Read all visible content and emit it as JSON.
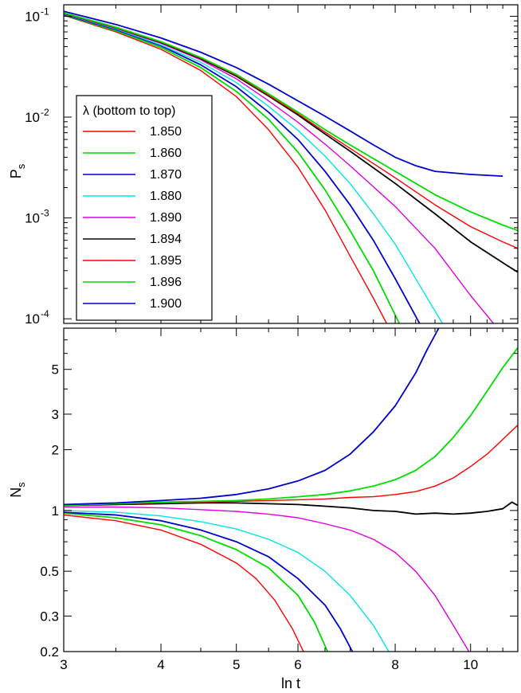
{
  "chart_data": [
    {
      "panel": "top",
      "type": "line",
      "title": "",
      "xlabel": "",
      "ylabel": "P_s",
      "ylabel_main": "P",
      "ylabel_sub": "s",
      "xscale": "log",
      "yscale": "log",
      "xlim": [
        3,
        11.5
      ],
      "ylim": [
        9e-05,
        0.13
      ],
      "xticks": [
        3,
        4,
        5,
        6,
        8,
        10
      ],
      "xtick_labels": [
        "3",
        "4",
        "5",
        "6",
        "8",
        "10"
      ],
      "yticks": [
        0.1,
        0.01,
        0.001,
        0.0001
      ],
      "ytick_labels": [
        {
          "base": "10",
          "exp": "-1"
        },
        {
          "base": "10",
          "exp": "-2"
        },
        {
          "base": "10",
          "exp": "-3"
        },
        {
          "base": "10",
          "exp": "-4"
        }
      ],
      "legend": {
        "title": "λ (bottom to top)",
        "placement": "upper-left",
        "entries": [
          "1.850",
          "1.860",
          "1.870",
          "1.880",
          "1.890",
          "1.894",
          "1.895",
          "1.896",
          "1.900"
        ]
      },
      "series": [
        {
          "name": "1.850",
          "color": "#ff0000",
          "x": [
            3,
            3.5,
            4,
            4.5,
            5,
            5.5,
            6,
            6.5,
            7,
            7.5,
            7.8
          ],
          "y": [
            0.102,
            0.07,
            0.047,
            0.029,
            0.016,
            0.0075,
            0.0032,
            0.0012,
            0.00042,
            0.00016,
            9e-05
          ]
        },
        {
          "name": "1.860",
          "color": "#00dd00",
          "x": [
            3,
            3.5,
            4,
            4.5,
            5,
            5.5,
            6,
            6.5,
            7,
            7.5,
            8.1
          ],
          "y": [
            0.103,
            0.072,
            0.049,
            0.031,
            0.018,
            0.0095,
            0.0045,
            0.0019,
            0.00075,
            0.0003,
            9e-05
          ]
        },
        {
          "name": "1.870",
          "color": "#0000cc",
          "x": [
            3,
            3.5,
            4,
            4.5,
            5,
            5.5,
            6,
            6.5,
            7,
            7.5,
            8,
            8.6
          ],
          "y": [
            0.104,
            0.074,
            0.051,
            0.033,
            0.02,
            0.0112,
            0.006,
            0.0029,
            0.00135,
            0.0006,
            0.00025,
            9e-05
          ]
        },
        {
          "name": "1.880",
          "color": "#00e5e5",
          "x": [
            3,
            3.5,
            4,
            4.5,
            5,
            5.5,
            6,
            6.5,
            7,
            7.5,
            8,
            8.5,
            9.2
          ],
          "y": [
            0.105,
            0.075,
            0.052,
            0.035,
            0.022,
            0.0128,
            0.0074,
            0.0041,
            0.0022,
            0.0011,
            0.00055,
            0.00025,
            9e-05
          ]
        },
        {
          "name": "1.890",
          "color": "#e000e0",
          "x": [
            3,
            3.5,
            4,
            4.5,
            5,
            5.5,
            6,
            6.5,
            7,
            8,
            9,
            10,
            10.7
          ],
          "y": [
            0.106,
            0.076,
            0.054,
            0.037,
            0.024,
            0.0145,
            0.0089,
            0.0054,
            0.0033,
            0.0013,
            0.0005,
            0.00017,
            9e-05
          ]
        },
        {
          "name": "1.894",
          "color": "#000000",
          "x": [
            3,
            3.5,
            4,
            4.5,
            5,
            5.5,
            6,
            6.5,
            7,
            8,
            9,
            10,
            11,
            11.5
          ],
          "y": [
            0.107,
            0.077,
            0.055,
            0.038,
            0.0255,
            0.0162,
            0.0105,
            0.0068,
            0.0046,
            0.0022,
            0.0011,
            0.00058,
            0.00036,
            0.00029
          ]
        },
        {
          "name": "1.895",
          "color": "#ff0000",
          "x": [
            3,
            3.5,
            4,
            4.5,
            5,
            5.5,
            6,
            6.5,
            7,
            8,
            9,
            10,
            11,
            11.5
          ],
          "y": [
            0.107,
            0.077,
            0.0555,
            0.0385,
            0.026,
            0.0165,
            0.0108,
            0.0071,
            0.0049,
            0.0025,
            0.00135,
            0.00082,
            0.00058,
            0.0005
          ]
        },
        {
          "name": "1.896",
          "color": "#00dd00",
          "x": [
            3,
            3.5,
            4,
            4.5,
            5,
            5.5,
            6,
            6.5,
            7,
            8,
            9,
            10,
            11,
            11.5
          ],
          "y": [
            0.108,
            0.078,
            0.056,
            0.039,
            0.0265,
            0.017,
            0.0112,
            0.0075,
            0.0053,
            0.0029,
            0.0017,
            0.00115,
            0.00085,
            0.00075
          ]
        },
        {
          "name": "1.900",
          "color": "#0000cc",
          "x": [
            3,
            3.5,
            4,
            4.5,
            5,
            5.5,
            6,
            6.5,
            7,
            7.5,
            8,
            8.5,
            9,
            10,
            11
          ],
          "y": [
            0.112,
            0.083,
            0.061,
            0.044,
            0.031,
            0.0212,
            0.0145,
            0.0102,
            0.0073,
            0.0053,
            0.004,
            0.0033,
            0.0029,
            0.0027,
            0.0026
          ]
        }
      ]
    },
    {
      "panel": "bottom",
      "type": "line",
      "title": "",
      "xlabel": "ln t",
      "ylabel": "N_s",
      "ylabel_main": "N",
      "ylabel_sub": "s",
      "xscale": "log",
      "yscale": "log",
      "xlim": [
        3,
        11.5
      ],
      "ylim": [
        0.2,
        8
      ],
      "xticks": [
        3,
        4,
        5,
        6,
        8,
        10
      ],
      "xtick_labels": [
        "3",
        "4",
        "5",
        "6",
        "8",
        "10"
      ],
      "yticks": [
        0.2,
        0.3,
        0.5,
        1,
        2,
        3,
        5
      ],
      "ytick_labels": [
        "0.2",
        "0.3",
        "0.5",
        "1",
        "2",
        "3",
        "5"
      ],
      "series": [
        {
          "name": "1.850",
          "color": "#ff0000",
          "x": [
            3,
            3.5,
            4,
            4.5,
            5,
            5.3,
            5.6,
            5.9,
            6.1
          ],
          "y": [
            0.95,
            0.89,
            0.8,
            0.68,
            0.55,
            0.46,
            0.36,
            0.26,
            0.2
          ]
        },
        {
          "name": "1.860",
          "color": "#00dd00",
          "x": [
            3,
            3.5,
            4,
            4.5,
            5,
            5.5,
            6,
            6.3,
            6.55
          ],
          "y": [
            0.97,
            0.92,
            0.85,
            0.75,
            0.64,
            0.52,
            0.38,
            0.28,
            0.2
          ]
        },
        {
          "name": "1.870",
          "color": "#0000cc",
          "x": [
            3,
            3.5,
            4,
            4.5,
            5,
            5.5,
            6,
            6.5,
            6.8,
            7.05
          ],
          "y": [
            0.98,
            0.95,
            0.89,
            0.8,
            0.7,
            0.59,
            0.46,
            0.34,
            0.26,
            0.2
          ]
        },
        {
          "name": "1.880",
          "color": "#00e5e5",
          "x": [
            3,
            3.5,
            4,
            4.5,
            5,
            5.5,
            6,
            6.5,
            7,
            7.5,
            7.85
          ],
          "y": [
            1.0,
            0.98,
            0.94,
            0.88,
            0.81,
            0.72,
            0.62,
            0.5,
            0.38,
            0.27,
            0.2
          ]
        },
        {
          "name": "1.890",
          "color": "#e000e0",
          "x": [
            3,
            3.5,
            4,
            4.5,
            5,
            5.5,
            6,
            6.5,
            7,
            7.5,
            8,
            8.5,
            9,
            9.5,
            9.95
          ],
          "y": [
            1.04,
            1.04,
            1.03,
            1.01,
            0.99,
            0.96,
            0.92,
            0.86,
            0.8,
            0.72,
            0.62,
            0.5,
            0.38,
            0.27,
            0.2
          ]
        },
        {
          "name": "1.894",
          "color": "#000000",
          "x": [
            3,
            3.5,
            4,
            4.5,
            5,
            5.5,
            6,
            6.5,
            7,
            7.5,
            8,
            8.5,
            9,
            9.5,
            10,
            10.5,
            11,
            11.3,
            11.5
          ],
          "y": [
            1.06,
            1.07,
            1.08,
            1.09,
            1.09,
            1.08,
            1.07,
            1.05,
            1.03,
            1.0,
            0.99,
            0.96,
            0.97,
            0.96,
            0.97,
            0.99,
            1.02,
            1.1,
            1.06
          ]
        },
        {
          "name": "1.895",
          "color": "#ff0000",
          "x": [
            3,
            3.5,
            4,
            4.5,
            5,
            5.5,
            6,
            6.5,
            7,
            7.5,
            8,
            8.5,
            9,
            9.5,
            10,
            10.5,
            11,
            11.5
          ],
          "y": [
            1.06,
            1.08,
            1.09,
            1.1,
            1.11,
            1.12,
            1.13,
            1.14,
            1.16,
            1.17,
            1.2,
            1.24,
            1.32,
            1.45,
            1.65,
            1.9,
            2.25,
            2.65
          ]
        },
        {
          "name": "1.896",
          "color": "#00dd00",
          "x": [
            3,
            3.5,
            4,
            4.5,
            5,
            5.5,
            6,
            6.5,
            7,
            7.5,
            8,
            8.5,
            9,
            9.5,
            10,
            10.5,
            11,
            11.5
          ],
          "y": [
            1.06,
            1.08,
            1.1,
            1.11,
            1.12,
            1.14,
            1.17,
            1.2,
            1.25,
            1.32,
            1.42,
            1.58,
            1.85,
            2.3,
            2.95,
            3.9,
            5.1,
            6.4
          ]
        },
        {
          "name": "1.900",
          "color": "#0000cc",
          "x": [
            3,
            3.5,
            4,
            4.5,
            5,
            5.5,
            6,
            6.5,
            7,
            7.5,
            8,
            8.5,
            8.8,
            9.1
          ],
          "y": [
            1.07,
            1.09,
            1.12,
            1.15,
            1.2,
            1.28,
            1.4,
            1.58,
            1.9,
            2.45,
            3.3,
            4.8,
            6.3,
            8.0
          ]
        }
      ]
    }
  ]
}
